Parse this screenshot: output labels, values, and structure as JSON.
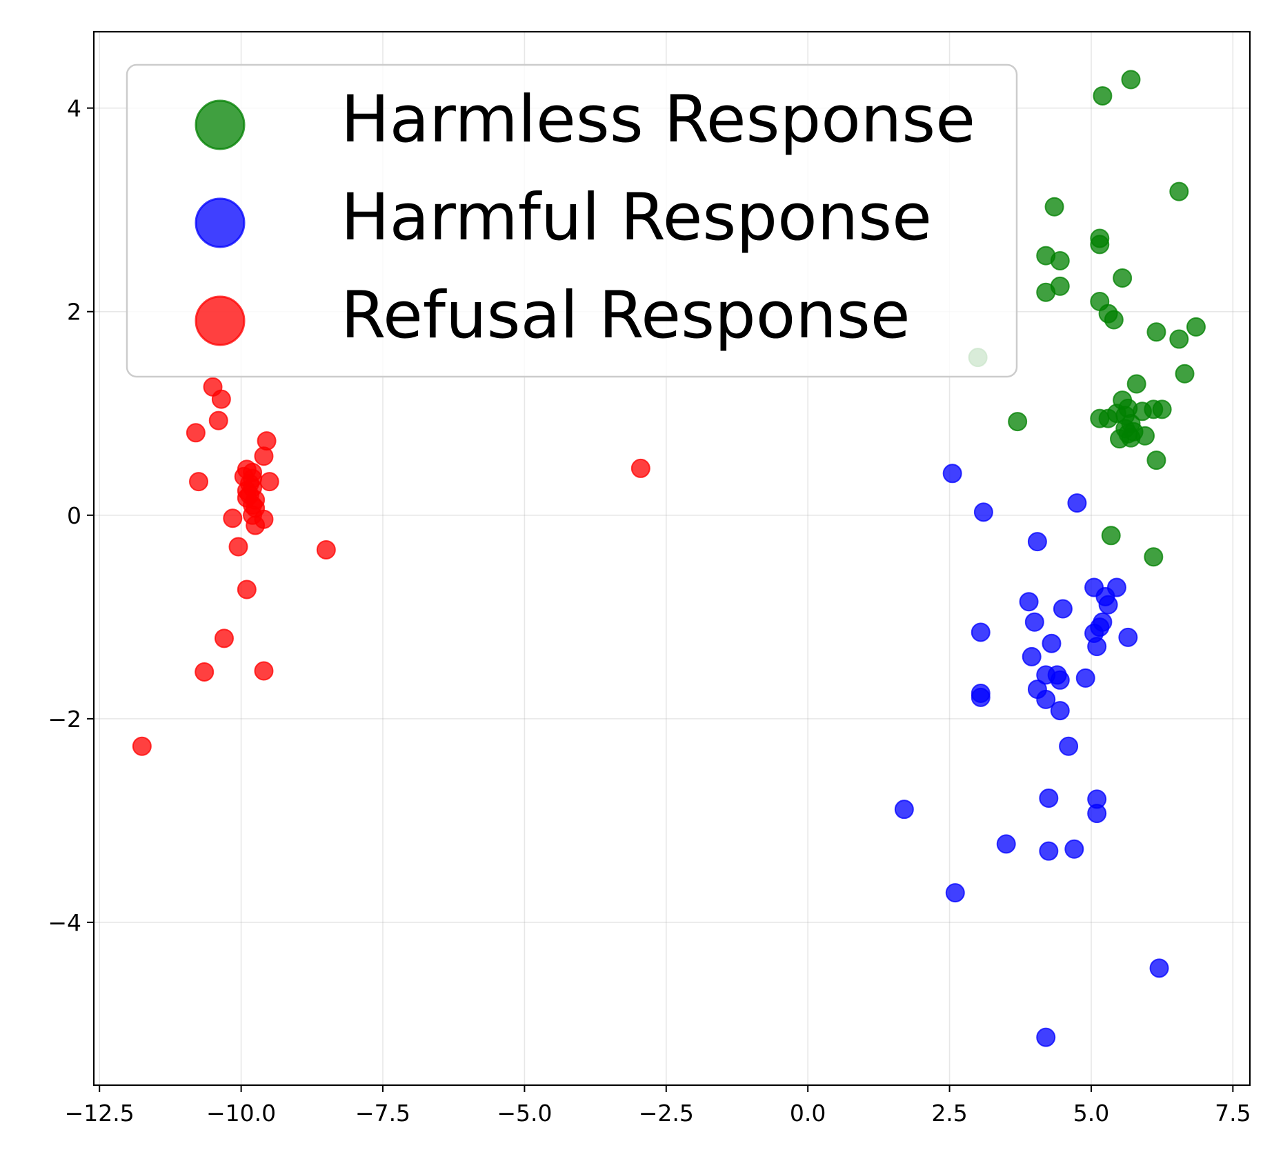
{
  "chart_data": {
    "type": "scatter",
    "title": "",
    "xlabel": "",
    "ylabel": "",
    "xlim": [
      -12.6,
      7.8
    ],
    "ylim": [
      -5.6,
      4.75
    ],
    "grid": true,
    "legend_position": "upper-left",
    "x_ticks": [
      {
        "value": -12.5,
        "label": "−12.5"
      },
      {
        "value": -10.0,
        "label": "−10.0"
      },
      {
        "value": -7.5,
        "label": "−7.5"
      },
      {
        "value": -5.0,
        "label": "−5.0"
      },
      {
        "value": -2.5,
        "label": "−2.5"
      },
      {
        "value": 0.0,
        "label": "0.0"
      },
      {
        "value": 2.5,
        "label": "2.5"
      },
      {
        "value": 5.0,
        "label": "5.0"
      },
      {
        "value": 7.5,
        "label": "7.5"
      }
    ],
    "y_ticks": [
      {
        "value": -4,
        "label": "−4"
      },
      {
        "value": -2,
        "label": "−2"
      },
      {
        "value": 0,
        "label": "0"
      },
      {
        "value": 2,
        "label": "2"
      },
      {
        "value": 4,
        "label": "4"
      }
    ],
    "series": [
      {
        "name": "Harmless Response",
        "color": "#008000",
        "points": [
          [
            5.7,
            4.28
          ],
          [
            5.2,
            4.12
          ],
          [
            6.55,
            3.18
          ],
          [
            4.35,
            3.03
          ],
          [
            5.15,
            2.72
          ],
          [
            5.15,
            2.66
          ],
          [
            4.2,
            2.55
          ],
          [
            4.45,
            2.5
          ],
          [
            5.55,
            2.33
          ],
          [
            4.45,
            2.25
          ],
          [
            4.2,
            2.19
          ],
          [
            5.15,
            2.1
          ],
          [
            5.3,
            1.98
          ],
          [
            5.4,
            1.92
          ],
          [
            6.85,
            1.85
          ],
          [
            6.15,
            1.8
          ],
          [
            6.55,
            1.73
          ],
          [
            6.65,
            1.39
          ],
          [
            5.8,
            1.29
          ],
          [
            5.55,
            1.13
          ],
          [
            5.65,
            1.05
          ],
          [
            5.9,
            1.02
          ],
          [
            6.1,
            1.04
          ],
          [
            6.25,
            1.04
          ],
          [
            5.45,
            1.0
          ],
          [
            5.6,
            0.98
          ],
          [
            5.3,
            0.95
          ],
          [
            5.15,
            0.95
          ],
          [
            3.7,
            0.92
          ],
          [
            5.7,
            0.9
          ],
          [
            5.6,
            0.85
          ],
          [
            5.75,
            0.82
          ],
          [
            5.65,
            0.8
          ],
          [
            5.95,
            0.78
          ],
          [
            5.5,
            0.75
          ],
          [
            5.7,
            0.76
          ],
          [
            6.15,
            0.54
          ],
          [
            5.35,
            -0.2
          ],
          [
            6.1,
            -0.41
          ],
          [
            3.0,
            1.55
          ]
        ]
      },
      {
        "name": "Harmful Response",
        "color": "#0000ff",
        "points": [
          [
            2.55,
            0.41
          ],
          [
            3.1,
            0.03
          ],
          [
            4.75,
            0.12
          ],
          [
            4.05,
            -0.26
          ],
          [
            5.05,
            -0.71
          ],
          [
            5.45,
            -0.71
          ],
          [
            5.25,
            -0.8
          ],
          [
            5.3,
            -0.88
          ],
          [
            3.9,
            -0.85
          ],
          [
            4.5,
            -0.92
          ],
          [
            4.0,
            -1.05
          ],
          [
            5.2,
            -1.05
          ],
          [
            5.15,
            -1.1
          ],
          [
            5.05,
            -1.16
          ],
          [
            3.05,
            -1.15
          ],
          [
            5.65,
            -1.2
          ],
          [
            4.3,
            -1.26
          ],
          [
            5.1,
            -1.29
          ],
          [
            3.95,
            -1.39
          ],
          [
            4.2,
            -1.57
          ],
          [
            4.4,
            -1.57
          ],
          [
            4.45,
            -1.62
          ],
          [
            4.9,
            -1.6
          ],
          [
            4.05,
            -1.71
          ],
          [
            3.05,
            -1.75
          ],
          [
            3.05,
            -1.79
          ],
          [
            4.2,
            -1.81
          ],
          [
            4.45,
            -1.92
          ],
          [
            4.6,
            -2.27
          ],
          [
            4.25,
            -2.78
          ],
          [
            5.1,
            -2.79
          ],
          [
            5.1,
            -2.93
          ],
          [
            1.7,
            -2.89
          ],
          [
            3.5,
            -3.23
          ],
          [
            4.25,
            -3.3
          ],
          [
            4.7,
            -3.28
          ],
          [
            2.6,
            -3.71
          ],
          [
            6.2,
            -4.45
          ],
          [
            4.2,
            -5.13
          ]
        ]
      },
      {
        "name": "Refusal Response",
        "color": "#ff0000",
        "points": [
          [
            -10.5,
            1.26
          ],
          [
            -10.35,
            1.14
          ],
          [
            -10.4,
            0.93
          ],
          [
            -10.8,
            0.81
          ],
          [
            -9.55,
            0.73
          ],
          [
            -9.6,
            0.58
          ],
          [
            -9.9,
            0.45
          ],
          [
            -9.8,
            0.42
          ],
          [
            -9.95,
            0.38
          ],
          [
            -9.8,
            0.36
          ],
          [
            -10.75,
            0.33
          ],
          [
            -9.5,
            0.33
          ],
          [
            -9.85,
            0.31
          ],
          [
            -9.8,
            0.27
          ],
          [
            -9.9,
            0.24
          ],
          [
            -9.85,
            0.2
          ],
          [
            -9.9,
            0.17
          ],
          [
            -9.75,
            0.15
          ],
          [
            -9.8,
            0.1
          ],
          [
            -9.75,
            0.07
          ],
          [
            -9.8,
            0.0
          ],
          [
            -10.15,
            -0.03
          ],
          [
            -9.6,
            -0.04
          ],
          [
            -9.75,
            -0.1
          ],
          [
            -10.05,
            -0.31
          ],
          [
            -8.5,
            -0.34
          ],
          [
            -9.9,
            -0.73
          ],
          [
            -10.3,
            -1.21
          ],
          [
            -10.65,
            -1.54
          ],
          [
            -9.6,
            -1.53
          ],
          [
            -11.75,
            -2.27
          ],
          [
            -2.95,
            0.46
          ]
        ]
      }
    ]
  }
}
